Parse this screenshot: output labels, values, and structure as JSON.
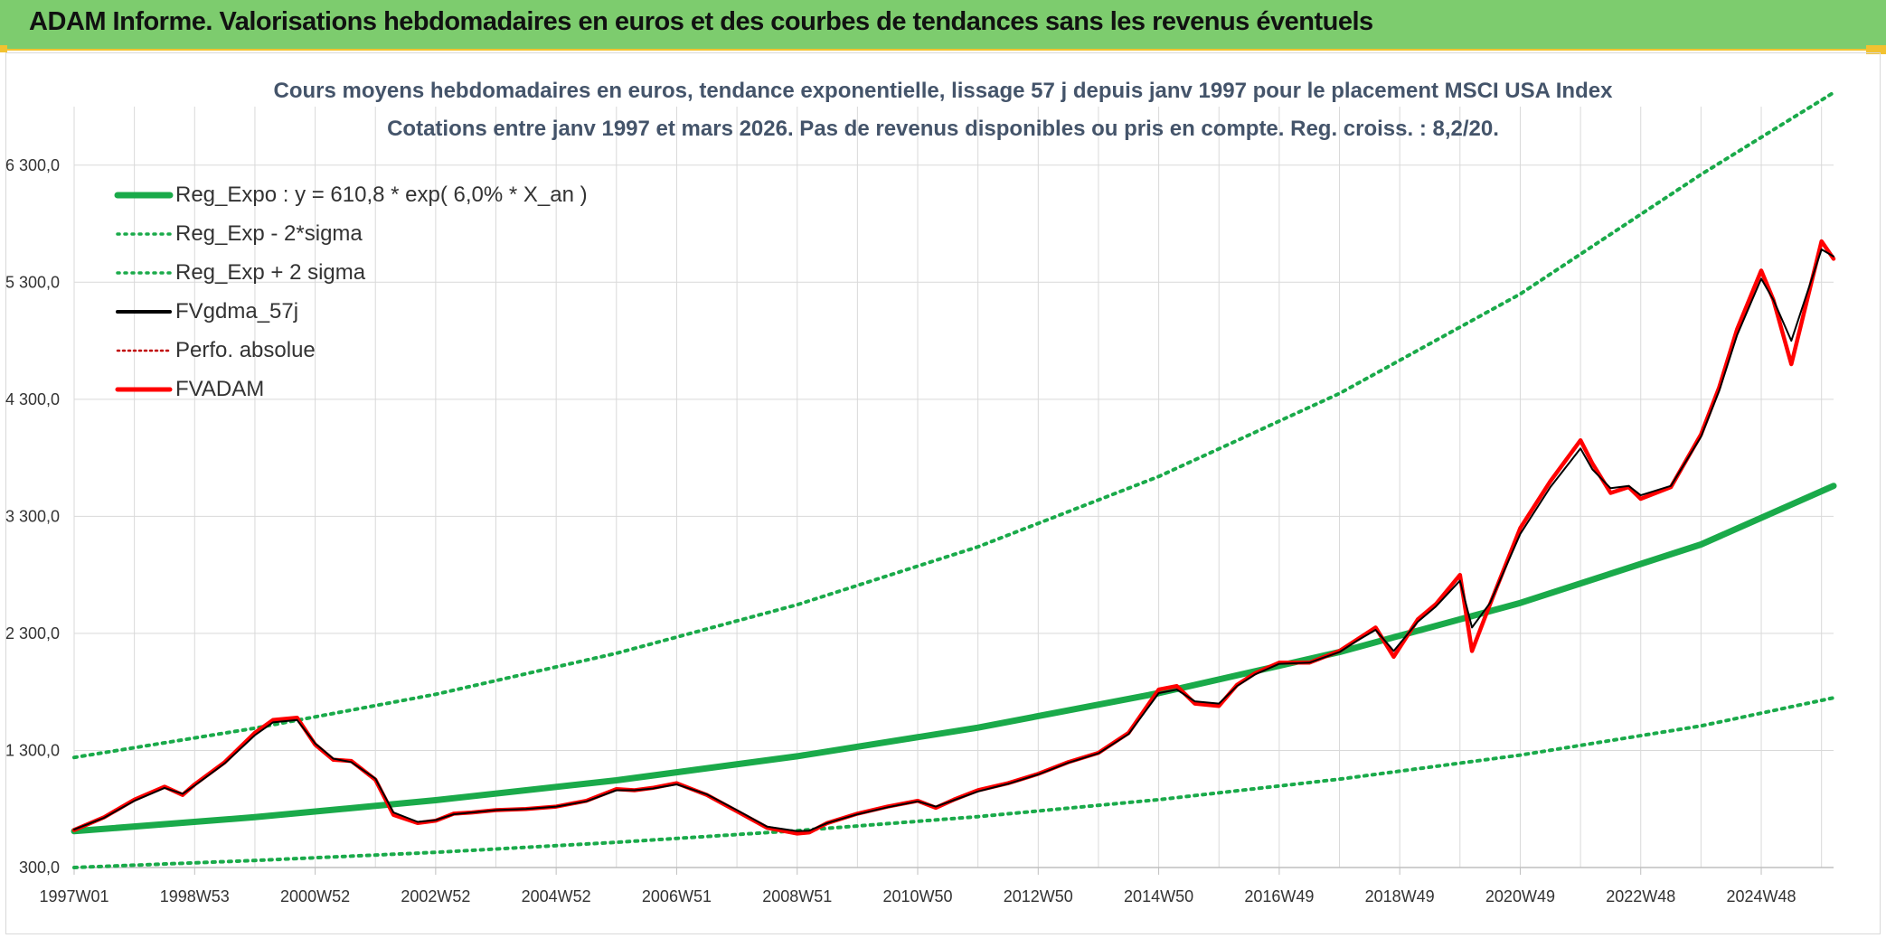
{
  "header": {
    "title": "ADAM Informe. Valorisations hebdomadaires en euros et des courbes de tendances sans les revenus éventuels"
  },
  "colors": {
    "banner": "#7dcc6e",
    "banner_border": "#f2c230",
    "reg_expo": "#1aaa4a",
    "fvgdma": "#000000",
    "fvadam": "#ff0000",
    "perfo": "#c00000",
    "grid": "#d9d9d9",
    "title": "#44546a"
  },
  "chart_data": {
    "type": "line",
    "title_line1": "Cours moyens hebdomadaires en euros, tendance exponentielle, lissage 57 j depuis janv 1997 pour le placement MSCI USA Index",
    "title_line2": "Cotations entre janv 1997 et mars 2026. Pas de revenus disponibles ou pris en compte. Reg. croiss. : 8,2/20.",
    "x_range": [
      1997.0,
      2026.2
    ],
    "ylim": [
      300,
      6800
    ],
    "y_ticks": [
      {
        "value": 300,
        "label": "300,0"
      },
      {
        "value": 1300,
        "label": "1 300,0"
      },
      {
        "value": 2300,
        "label": "2 300,0"
      },
      {
        "value": 3300,
        "label": "3 300,0"
      },
      {
        "value": 4300,
        "label": "4 300,0"
      },
      {
        "value": 5300,
        "label": "5 300,0"
      },
      {
        "value": 6300,
        "label": "6 300,0"
      }
    ],
    "x_ticks": [
      {
        "value": 1997.0,
        "label": "1997W01"
      },
      {
        "value": 1999.0,
        "label": "1998W53"
      },
      {
        "value": 2001.0,
        "label": "2000W52"
      },
      {
        "value": 2003.0,
        "label": "2002W52"
      },
      {
        "value": 2005.0,
        "label": "2004W52"
      },
      {
        "value": 2007.0,
        "label": "2006W51"
      },
      {
        "value": 2009.0,
        "label": "2008W51"
      },
      {
        "value": 2011.0,
        "label": "2010W50"
      },
      {
        "value": 2013.0,
        "label": "2012W50"
      },
      {
        "value": 2015.0,
        "label": "2014W50"
      },
      {
        "value": 2017.0,
        "label": "2016W49"
      },
      {
        "value": 2019.0,
        "label": "2018W49"
      },
      {
        "value": 2021.0,
        "label": "2020W49"
      },
      {
        "value": 2023.0,
        "label": "2022W48"
      },
      {
        "value": 2025.0,
        "label": "2024W48"
      }
    ],
    "legend": [
      {
        "key": "reg_expo",
        "label": "Reg_Expo : y = 610,8 * exp( 6,0% *  X_an )",
        "style": "thick-solid",
        "color": "#1aaa4a"
      },
      {
        "key": "lower",
        "label": "Reg_Exp - 2*sigma",
        "style": "dotted",
        "color": "#1aaa4a"
      },
      {
        "key": "upper",
        "label": "Reg_Exp + 2 sigma",
        "style": "dotted",
        "color": "#1aaa4a"
      },
      {
        "key": "fvgdma",
        "label": "FVgdma_57j",
        "style": "solid",
        "color": "#000000"
      },
      {
        "key": "perfo",
        "label": "Perfo. absolue",
        "style": "dotted",
        "color": "#c00000"
      },
      {
        "key": "fvadam",
        "label": "FVADAM",
        "style": "solid",
        "color": "#ff0000"
      }
    ],
    "series": [
      {
        "name": "Reg_Expo",
        "x": [
          1997.0,
          2000.0,
          2003.0,
          2006.0,
          2009.0,
          2012.0,
          2015.0,
          2018.0,
          2021.0,
          2024.0,
          2026.2
        ],
        "values": [
          610,
          730,
          875,
          1045,
          1250,
          1495,
          1790,
          2140,
          2560,
          3060,
          3560
        ]
      },
      {
        "name": "Reg_Exp - 2*sigma",
        "x": [
          1997.0,
          2000.0,
          2003.0,
          2006.0,
          2009.0,
          2012.0,
          2015.0,
          2018.0,
          2021.0,
          2024.0,
          2026.2
        ],
        "values": [
          300,
          360,
          430,
          515,
          615,
          735,
          880,
          1055,
          1260,
          1510,
          1750
        ]
      },
      {
        "name": "Reg_Exp + 2 sigma",
        "x": [
          1997.0,
          2000.0,
          2003.0,
          2006.0,
          2009.0,
          2012.0,
          2015.0,
          2018.0,
          2021.0,
          2024.0,
          2026.2
        ],
        "values": [
          1240,
          1490,
          1780,
          2130,
          2545,
          3040,
          3640,
          4350,
          5200,
          6220,
          6980
        ]
      },
      {
        "name": "FVADAM",
        "x": [
          1997.0,
          1997.5,
          1998.0,
          1998.5,
          1998.8,
          1999.0,
          1999.5,
          2000.0,
          2000.3,
          2000.7,
          2001.0,
          2001.3,
          2001.6,
          2002.0,
          2002.3,
          2002.7,
          2003.0,
          2003.3,
          2003.6,
          2004.0,
          2004.5,
          2005.0,
          2005.5,
          2006.0,
          2006.3,
          2006.6,
          2007.0,
          2007.5,
          2008.0,
          2008.5,
          2009.0,
          2009.2,
          2009.5,
          2010.0,
          2010.5,
          2011.0,
          2011.3,
          2011.6,
          2012.0,
          2012.5,
          2013.0,
          2013.5,
          2014.0,
          2014.5,
          2015.0,
          2015.3,
          2015.6,
          2016.0,
          2016.3,
          2016.6,
          2017.0,
          2017.5,
          2018.0,
          2018.3,
          2018.6,
          2018.9,
          2019.3,
          2019.6,
          2020.0,
          2020.2,
          2020.5,
          2021.0,
          2021.5,
          2022.0,
          2022.2,
          2022.5,
          2022.8,
          2023.0,
          2023.5,
          2024.0,
          2024.3,
          2024.6,
          2025.0,
          2025.2,
          2025.5,
          2026.0,
          2026.2
        ],
        "values": [
          620,
          730,
          880,
          990,
          920,
          1010,
          1200,
          1450,
          1560,
          1580,
          1350,
          1220,
          1210,
          1050,
          750,
          680,
          700,
          760,
          770,
          790,
          800,
          820,
          870,
          970,
          960,
          980,
          1020,
          920,
          780,
          640,
          590,
          600,
          680,
          760,
          820,
          870,
          810,
          880,
          960,
          1020,
          1100,
          1200,
          1280,
          1450,
          1820,
          1850,
          1700,
          1680,
          1860,
          1960,
          2050,
          2050,
          2150,
          2250,
          2350,
          2100,
          2420,
          2550,
          2800,
          2150,
          2550,
          3200,
          3600,
          3950,
          3750,
          3500,
          3550,
          3450,
          3550,
          4000,
          4400,
          4900,
          5400,
          5150,
          4600,
          5650,
          5500
        ]
      },
      {
        "name": "FVgdma_57j",
        "x": [
          1997.0,
          1997.5,
          1998.0,
          1998.5,
          1998.8,
          1999.0,
          1999.5,
          2000.0,
          2000.3,
          2000.7,
          2001.0,
          2001.3,
          2001.6,
          2002.0,
          2002.3,
          2002.7,
          2003.0,
          2003.3,
          2003.6,
          2004.0,
          2004.5,
          2005.0,
          2005.5,
          2006.0,
          2006.3,
          2006.6,
          2007.0,
          2007.5,
          2008.0,
          2008.5,
          2009.0,
          2009.2,
          2009.5,
          2010.0,
          2010.5,
          2011.0,
          2011.3,
          2011.6,
          2012.0,
          2012.5,
          2013.0,
          2013.5,
          2014.0,
          2014.5,
          2015.0,
          2015.3,
          2015.6,
          2016.0,
          2016.3,
          2016.6,
          2017.0,
          2017.5,
          2018.0,
          2018.3,
          2018.6,
          2018.9,
          2019.3,
          2019.6,
          2020.0,
          2020.2,
          2020.5,
          2021.0,
          2021.5,
          2022.0,
          2022.2,
          2022.5,
          2022.8,
          2023.0,
          2023.5,
          2024.0,
          2024.3,
          2024.6,
          2025.0,
          2025.2,
          2025.5,
          2026.0,
          2026.2
        ],
        "values": [
          625,
          725,
          870,
          980,
          930,
          1000,
          1190,
          1430,
          1540,
          1560,
          1360,
          1230,
          1200,
          1060,
          770,
          690,
          705,
          755,
          770,
          790,
          800,
          820,
          865,
          960,
          960,
          975,
          1010,
          925,
          790,
          650,
          610,
          615,
          680,
          755,
          815,
          865,
          820,
          875,
          950,
          1015,
          1095,
          1195,
          1275,
          1440,
          1790,
          1820,
          1720,
          1700,
          1850,
          1950,
          2040,
          2050,
          2140,
          2240,
          2330,
          2150,
          2400,
          2530,
          2750,
          2350,
          2560,
          3150,
          3550,
          3880,
          3700,
          3540,
          3560,
          3480,
          3560,
          3980,
          4370,
          4850,
          5330,
          5150,
          4800,
          5580,
          5520
        ]
      }
    ]
  }
}
